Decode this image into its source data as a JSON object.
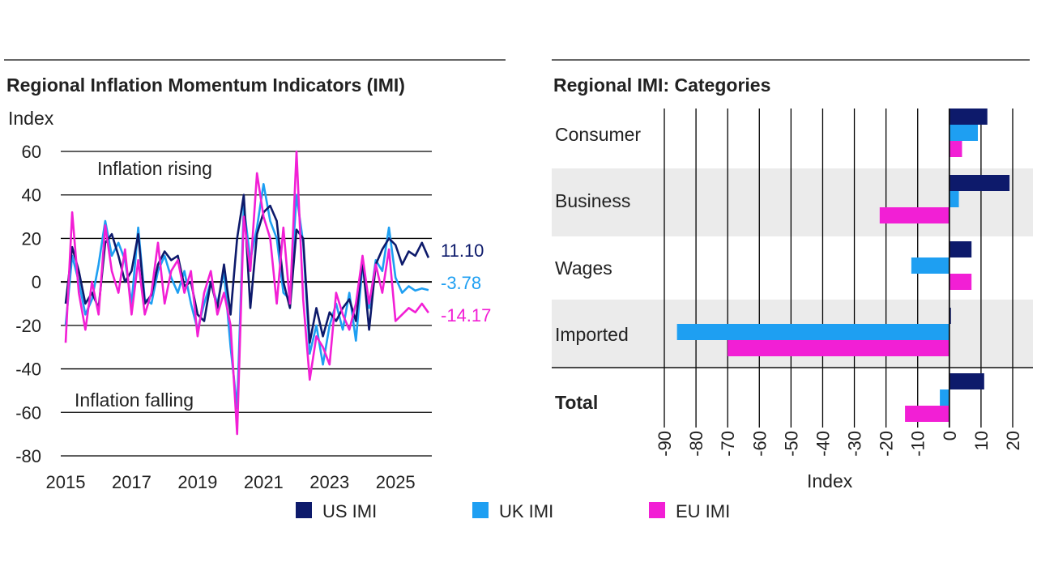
{
  "colors": {
    "us": "#0d1a6b",
    "uk": "#1e9ff2",
    "eu": "#f21fd5",
    "band": "#ebebeb",
    "grid": "#000000"
  },
  "legend": [
    {
      "key": "us",
      "label": "US IMI"
    },
    {
      "key": "uk",
      "label": "UK IMI"
    },
    {
      "key": "eu",
      "label": "EU IMI"
    }
  ],
  "chart_data": [
    {
      "type": "line",
      "title": "Regional Inflation Momentum Indicators (IMI)",
      "ylabel": "Index",
      "xlabel": "",
      "ylim": [
        -80,
        60
      ],
      "yticks": [
        60,
        40,
        20,
        0,
        -20,
        -40,
        -60,
        -80
      ],
      "xlim": [
        2015,
        2026.1
      ],
      "xticks": [
        2015,
        2017,
        2019,
        2021,
        2023,
        2025
      ],
      "annotations": {
        "upper": "Inflation rising",
        "lower": "Inflation falling"
      },
      "end_labels": {
        "us": "11.10",
        "uk": "-3.78",
        "eu": "-14.17"
      },
      "series": [
        {
          "name": "US IMI",
          "key": "us",
          "x": [
            2015.0,
            2015.2,
            2015.4,
            2015.6,
            2015.8,
            2016.0,
            2016.2,
            2016.4,
            2016.6,
            2016.8,
            2017.0,
            2017.2,
            2017.4,
            2017.6,
            2017.8,
            2018.0,
            2018.2,
            2018.4,
            2018.6,
            2018.8,
            2019.0,
            2019.2,
            2019.4,
            2019.6,
            2019.8,
            2020.0,
            2020.2,
            2020.4,
            2020.6,
            2020.8,
            2021.0,
            2021.2,
            2021.4,
            2021.6,
            2021.8,
            2022.0,
            2022.2,
            2022.4,
            2022.6,
            2022.8,
            2023.0,
            2023.2,
            2023.4,
            2023.6,
            2023.8,
            2024.0,
            2024.2,
            2024.4,
            2024.6,
            2024.8,
            2025.0,
            2025.2,
            2025.4,
            2025.6,
            2025.8,
            2026.0
          ],
          "values": [
            -10,
            16,
            5,
            -10,
            -5,
            -12,
            18,
            22,
            12,
            0,
            5,
            22,
            -10,
            -6,
            8,
            14,
            10,
            12,
            -2,
            0,
            -15,
            -18,
            0,
            -12,
            8,
            -15,
            20,
            40,
            -12,
            22,
            32,
            35,
            28,
            0,
            -12,
            24,
            20,
            -28,
            -12,
            -25,
            -14,
            -18,
            -12,
            -8,
            -18,
            10,
            -22,
            8,
            15,
            20,
            17,
            8,
            14,
            12,
            18,
            11.1
          ]
        },
        {
          "name": "UK IMI",
          "key": "uk",
          "x": [
            2015.0,
            2015.2,
            2015.4,
            2015.6,
            2015.8,
            2016.0,
            2016.2,
            2016.4,
            2016.6,
            2016.8,
            2017.0,
            2017.2,
            2017.4,
            2017.6,
            2017.8,
            2018.0,
            2018.2,
            2018.4,
            2018.6,
            2018.8,
            2019.0,
            2019.2,
            2019.4,
            2019.6,
            2019.8,
            2020.0,
            2020.2,
            2020.4,
            2020.6,
            2020.8,
            2021.0,
            2021.2,
            2021.4,
            2021.6,
            2021.8,
            2022.0,
            2022.2,
            2022.4,
            2022.6,
            2022.8,
            2023.0,
            2023.2,
            2023.4,
            2023.6,
            2023.8,
            2024.0,
            2024.2,
            2024.4,
            2024.6,
            2024.8,
            2025.0,
            2025.2,
            2025.4,
            2025.6,
            2025.8,
            2026.0
          ],
          "values": [
            -20,
            12,
            0,
            -15,
            -8,
            8,
            28,
            12,
            18,
            10,
            -10,
            25,
            -8,
            -10,
            5,
            12,
            2,
            -5,
            5,
            -10,
            -22,
            -10,
            0,
            -10,
            5,
            -30,
            -58,
            35,
            10,
            25,
            45,
            28,
            20,
            -5,
            -8,
            40,
            18,
            -33,
            -20,
            -38,
            -20,
            -10,
            -22,
            -5,
            -27,
            8,
            -12,
            10,
            5,
            25,
            2,
            -5,
            -2,
            -4,
            -3,
            -3.78
          ]
        },
        {
          "name": "EU IMI",
          "key": "eu",
          "x": [
            2015.0,
            2015.2,
            2015.4,
            2015.6,
            2015.8,
            2016.0,
            2016.2,
            2016.4,
            2016.6,
            2016.8,
            2017.0,
            2017.2,
            2017.4,
            2017.6,
            2017.8,
            2018.0,
            2018.2,
            2018.4,
            2018.6,
            2018.8,
            2019.0,
            2019.2,
            2019.4,
            2019.6,
            2019.8,
            2020.0,
            2020.2,
            2020.4,
            2020.6,
            2020.8,
            2021.0,
            2021.2,
            2021.4,
            2021.6,
            2021.8,
            2022.0,
            2022.2,
            2022.4,
            2022.6,
            2022.8,
            2023.0,
            2023.2,
            2023.4,
            2023.6,
            2023.8,
            2024.0,
            2024.2,
            2024.4,
            2024.6,
            2024.8,
            2025.0,
            2025.2,
            2025.4,
            2025.6,
            2025.8,
            2026.0
          ],
          "values": [
            -28,
            32,
            -5,
            -22,
            0,
            -15,
            26,
            5,
            -5,
            15,
            -15,
            10,
            -15,
            -5,
            18,
            -10,
            5,
            10,
            -5,
            5,
            -25,
            -5,
            5,
            -15,
            -5,
            -20,
            -70,
            30,
            5,
            50,
            30,
            20,
            -10,
            25,
            -10,
            60,
            -8,
            -45,
            -25,
            -30,
            -38,
            -5,
            -15,
            -22,
            -10,
            12,
            -10,
            8,
            -5,
            15,
            -18,
            -15,
            -12,
            -14,
            -10,
            -14.17
          ]
        }
      ]
    },
    {
      "type": "bar",
      "orientation": "horizontal",
      "title": "Regional IMI: Categories",
      "xlabel": "Index",
      "xlim": [
        -90,
        20
      ],
      "xticks": [
        -90,
        -80,
        -70,
        -60,
        -50,
        -40,
        -30,
        -20,
        -10,
        0,
        10,
        20
      ],
      "categories": [
        "Consumer",
        "Business",
        "Wages",
        "Imported",
        "Total"
      ],
      "series": [
        {
          "name": "US IMI",
          "key": "us",
          "values": [
            12,
            19,
            7,
            0.5,
            11
          ]
        },
        {
          "name": "UK IMI",
          "key": "uk",
          "values": [
            9,
            3,
            -12,
            -86,
            -3
          ]
        },
        {
          "name": "EU IMI",
          "key": "eu",
          "values": [
            4,
            -22,
            7,
            -70,
            -14
          ]
        }
      ]
    }
  ]
}
